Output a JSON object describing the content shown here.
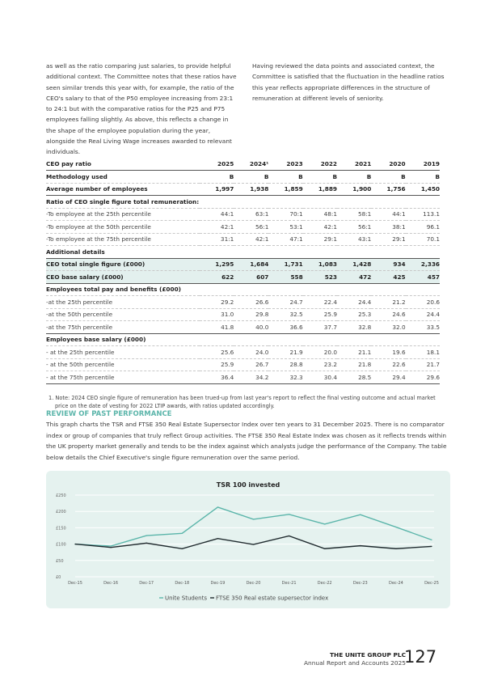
{
  "intro": {
    "left": "as well as the ratio comparing just salaries, to provide helpful additional context. The Committee notes that these ratios have seen similar trends this year with, for example, the ratio of the CEO's salary to that of the P50 employee increasing from 23:1 to 24:1 but with the comparative ratios for the P25 and P75 employees falling slightly. As above, this reflects a change in the shape of the employee population during the year, alongside the Real Living Wage increases awarded to relevant individuals.",
    "right": "Having reviewed the data points and associated context, the Committee is satisfied that the fluctuation in the headline ratios this year reflects appropriate differences in the structure of remuneration at different levels of seniority."
  },
  "table": {
    "header": [
      "CEO pay ratio",
      "2025",
      "2024¹",
      "2023",
      "2022",
      "2021",
      "2020",
      "2019"
    ],
    "rows": [
      {
        "label": "Methodology used",
        "values": [
          "B",
          "B",
          "B",
          "B",
          "B",
          "B",
          "B"
        ],
        "style": "b"
      },
      {
        "label": "Average number of employees",
        "values": [
          "1,997",
          "1,938",
          "1,859",
          "1,889",
          "1,900",
          "1,756",
          "1,450"
        ],
        "style": "b thick"
      },
      {
        "label": "Ratio of CEO single figure total remuneration:",
        "values": [
          "",
          "",
          "",
          "",
          "",
          "",
          ""
        ],
        "style": "sec"
      },
      {
        "label": "-To employee at the 25th percentile",
        "values": [
          "44:1",
          "63:1",
          "70:1",
          "48:1",
          "58:1",
          "44:1",
          "113.1"
        ],
        "style": ""
      },
      {
        "label": "-To employee at the 50th percentile",
        "values": [
          "42:1",
          "56:1",
          "53:1",
          "42:1",
          "56:1",
          "38:1",
          "96.1"
        ],
        "style": ""
      },
      {
        "label": "-To employee at the 75th percentile",
        "values": [
          "31:1",
          "42:1",
          "47:1",
          "29:1",
          "43:1",
          "29:1",
          "70.1"
        ],
        "style": ""
      },
      {
        "label": "Additional details",
        "values": [
          "",
          "",
          "",
          "",
          "",
          "",
          ""
        ],
        "style": "sec thick"
      },
      {
        "label": "CEO total single figure (£000)",
        "values": [
          "1,295",
          "1,684",
          "1,731",
          "1,083",
          "1,428",
          "934",
          "2,336"
        ],
        "style": "b hl"
      },
      {
        "label": "CEO base salary (£000)",
        "values": [
          "622",
          "607",
          "558",
          "523",
          "472",
          "425",
          "457"
        ],
        "style": "b hl thick"
      },
      {
        "label": "Employees total pay and benefits (£000)",
        "values": [
          "",
          "",
          "",
          "",
          "",
          "",
          ""
        ],
        "style": "sec"
      },
      {
        "label": "-at the 25th percentile",
        "values": [
          "29.2",
          "26.6",
          "24.7",
          "22.4",
          "24.4",
          "21.2",
          "20.6"
        ],
        "style": ""
      },
      {
        "label": "-at the 50th percentile",
        "values": [
          "31.0",
          "29.8",
          "32.5",
          "25.9",
          "25.3",
          "24.6",
          "24.4"
        ],
        "style": ""
      },
      {
        "label": "-at the 75th percentile",
        "values": [
          "41.8",
          "40.0",
          "36.6",
          "37.7",
          "32.8",
          "32.0",
          "33.5"
        ],
        "style": "thick"
      },
      {
        "label": "Employees base salary (£000)",
        "values": [
          "",
          "",
          "",
          "",
          "",
          "",
          ""
        ],
        "style": "sec"
      },
      {
        "label": "- at the 25th percentile",
        "values": [
          "25.6",
          "24.0",
          "21.9",
          "20.0",
          "21.1",
          "19.6",
          "18.1"
        ],
        "style": ""
      },
      {
        "label": "- at the 50th percentile",
        "values": [
          "25.9",
          "26.7",
          "28.8",
          "23.2",
          "21.8",
          "22.6",
          "21.7"
        ],
        "style": ""
      },
      {
        "label": "- at the 75th percentile",
        "values": [
          "36.4",
          "34.2",
          "32.3",
          "30.4",
          "28.5",
          "29.4",
          "29.6"
        ],
        "style": "thick"
      }
    ],
    "note": "1. Note: 2024 CEO single figure of remuneration has been trued-up from last year's report to reflect the final vesting outcome and actual market price on the date of vesting for 2022 LTIP awards, with ratios updated accordingly."
  },
  "review": {
    "heading": "REVIEW OF PAST PERFORMANCE",
    "body": "This graph charts the TSR and FTSE 350 Real Estate Supersector Index over ten years to 31 December 2025. There is no comparator index or group of companies that truly reflect Group activities. The FTSE 350 Real Estate Index was chosen as it reflects trends within the UK property market generally and tends to be the index against which analysts judge the performance of the Company. The table below details the Chief Executive's single figure remuneration over the same period."
  },
  "chart_data": {
    "type": "line",
    "title": "TSR 100 invested",
    "categories": [
      "Dec-15",
      "Dec-16",
      "Dec-17",
      "Dec-18",
      "Dec-19",
      "Dec-20",
      "Dec-21",
      "Dec-22",
      "Dec-23",
      "Dec-24",
      "Dec-25"
    ],
    "yticks": [
      "£0",
      "£50",
      "£100",
      "£150",
      "£200",
      "£250"
    ],
    "ylim": [
      0,
      250
    ],
    "grid": true,
    "legend": "bottom",
    "series": [
      {
        "name": "Unite Students",
        "color": "#5bb5aa",
        "values": [
          100,
          94,
          126,
          133,
          213,
          176,
          191,
          161,
          190,
          152,
          113
        ]
      },
      {
        "name": "FTSE 350 Real estate supersector index",
        "color": "#1f2a2e",
        "values": [
          100,
          90,
          103,
          86,
          117,
          99,
          125,
          86,
          95,
          86,
          93
        ]
      }
    ]
  },
  "footer": {
    "company": "THE UNITE GROUP PLC",
    "report": "Annual Report and Accounts 2025",
    "page": "127"
  }
}
